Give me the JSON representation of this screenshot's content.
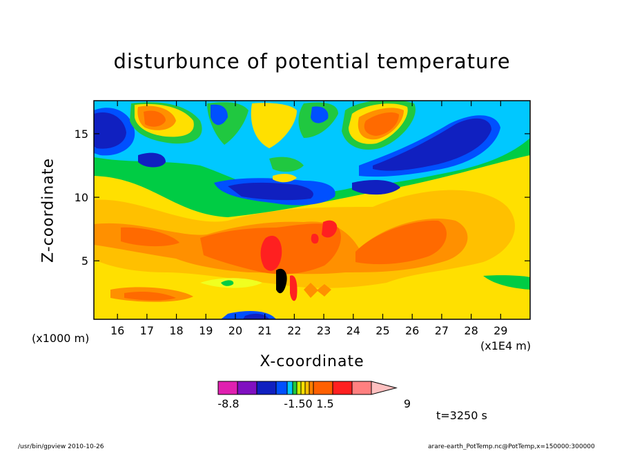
{
  "chart_data": {
    "type": "heatmap",
    "title": "disturbunce of potential temperature",
    "xlabel": "X-coordinate",
    "ylabel": "Z-coordinate",
    "x_unit_label": "(x1E4 m)",
    "y_unit_label": "(x1000 m)",
    "xlim": [
      15.2,
      30
    ],
    "ylim": [
      0.4,
      17.6
    ],
    "x_ticks": [
      "16",
      "17",
      "18",
      "19",
      "20",
      "21",
      "22",
      "23",
      "24",
      "25",
      "26",
      "27",
      "28",
      "29"
    ],
    "y_ticks": [
      "5",
      "10",
      "15"
    ],
    "colorbar": {
      "labels": [
        "-8.8",
        "-1.50",
        "1.5",
        "9"
      ],
      "colors": [
        "#e020b0",
        "#8010c0",
        "#1020c0",
        "#0050ff",
        "#00c8ff",
        "#20c840",
        "#c8f000",
        "#ffe000",
        "#ffc000",
        "#ff8000",
        "#ff6000",
        "#ff2020",
        "#ff8080",
        "#ffc0c0"
      ]
    },
    "features": [
      {
        "label": "upper-left negative core",
        "x": 15.9,
        "z": 15.5,
        "value": -6.0
      },
      {
        "label": "upper-left positive core",
        "x": 17.2,
        "z": 16.2,
        "value": 5.0
      },
      {
        "label": "upper-right positive core",
        "x": 25.3,
        "z": 15.5,
        "value": 5.0
      },
      {
        "label": "upper-right negative core",
        "x": 27.4,
        "z": 14.5,
        "value": -6.0
      },
      {
        "label": "mid-level negative band",
        "x": 21.8,
        "z": 10.5,
        "value": -5.0
      },
      {
        "label": "lower positive center",
        "x": 21.5,
        "z": 5.5,
        "value": 6.0
      },
      {
        "label": "lower positive right lobe",
        "x": 25.8,
        "z": 6.0,
        "value": 4.0
      },
      {
        "label": "lower positive left lobe",
        "x": 18.3,
        "z": 6.5,
        "value": 3.5
      }
    ]
  },
  "time_label": "t=3250 s",
  "footer": {
    "left": "/usr/bin/gpview   2010-10-26",
    "right": "arare-earth_PotTemp.nc@PotTemp,x=150000:300000"
  }
}
